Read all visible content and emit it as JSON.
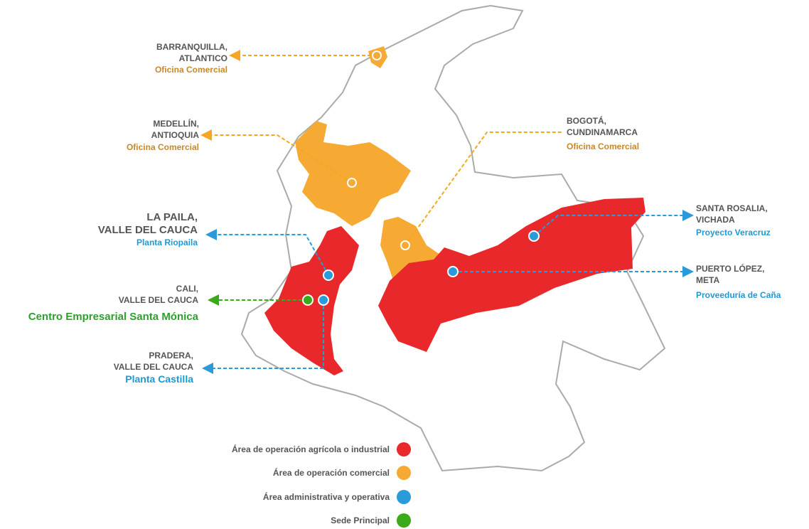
{
  "locations": [
    {
      "lines": [
        "BARRANQUILLA,",
        "ATLANTICO"
      ],
      "role": "Oficina Comercial"
    },
    {
      "lines": [
        "MEDELLÍN,",
        "ANTIOQUIA"
      ],
      "role": "Oficina Comercial"
    },
    {
      "lines": [
        "BOGOTÁ,",
        "CUNDINAMARCA"
      ],
      "role": "Oficina Comercial"
    },
    {
      "lines": [
        "LA PAILA,",
        "VALLE DEL CAUCA"
      ],
      "role": "Planta Riopaila"
    },
    {
      "lines": [
        "CALI,",
        "VALLE DEL CAUCA"
      ],
      "role": "Centro Empresarial Santa Mónica"
    },
    {
      "lines": [
        "PRADERA,",
        "VALLE DEL CAUCA"
      ],
      "role": "Planta Castilla"
    },
    {
      "lines": [
        "SANTA ROSALIA,",
        "VICHADA"
      ],
      "role": "Proyecto Veracruz"
    },
    {
      "lines": [
        "PUERTO LÓPEZ,",
        "META"
      ],
      "role": "Proveeduría de Caña"
    }
  ],
  "legend": [
    "Área de operación agrícola o industrial",
    "Área de operación comercial",
    "Área administrativa y operativa",
    "Sede Principal"
  ]
}
